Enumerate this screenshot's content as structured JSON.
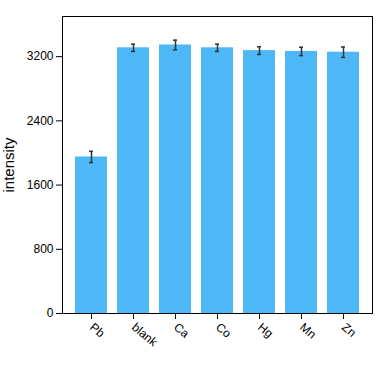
{
  "chart_data": {
    "type": "bar",
    "categories": [
      "Pb",
      "blank",
      "Ca",
      "Co",
      "Hg",
      "Mn",
      "Zn"
    ],
    "values": [
      1950,
      3310,
      3345,
      3310,
      3275,
      3265,
      3255
    ],
    "errors": [
      70,
      45,
      60,
      45,
      48,
      52,
      65
    ],
    "color": "#4db8f5",
    "ylabel": "intensity",
    "ylim": [
      0,
      3700
    ],
    "yticks": [
      0,
      800,
      1600,
      2400,
      3200
    ],
    "grid": false
  }
}
